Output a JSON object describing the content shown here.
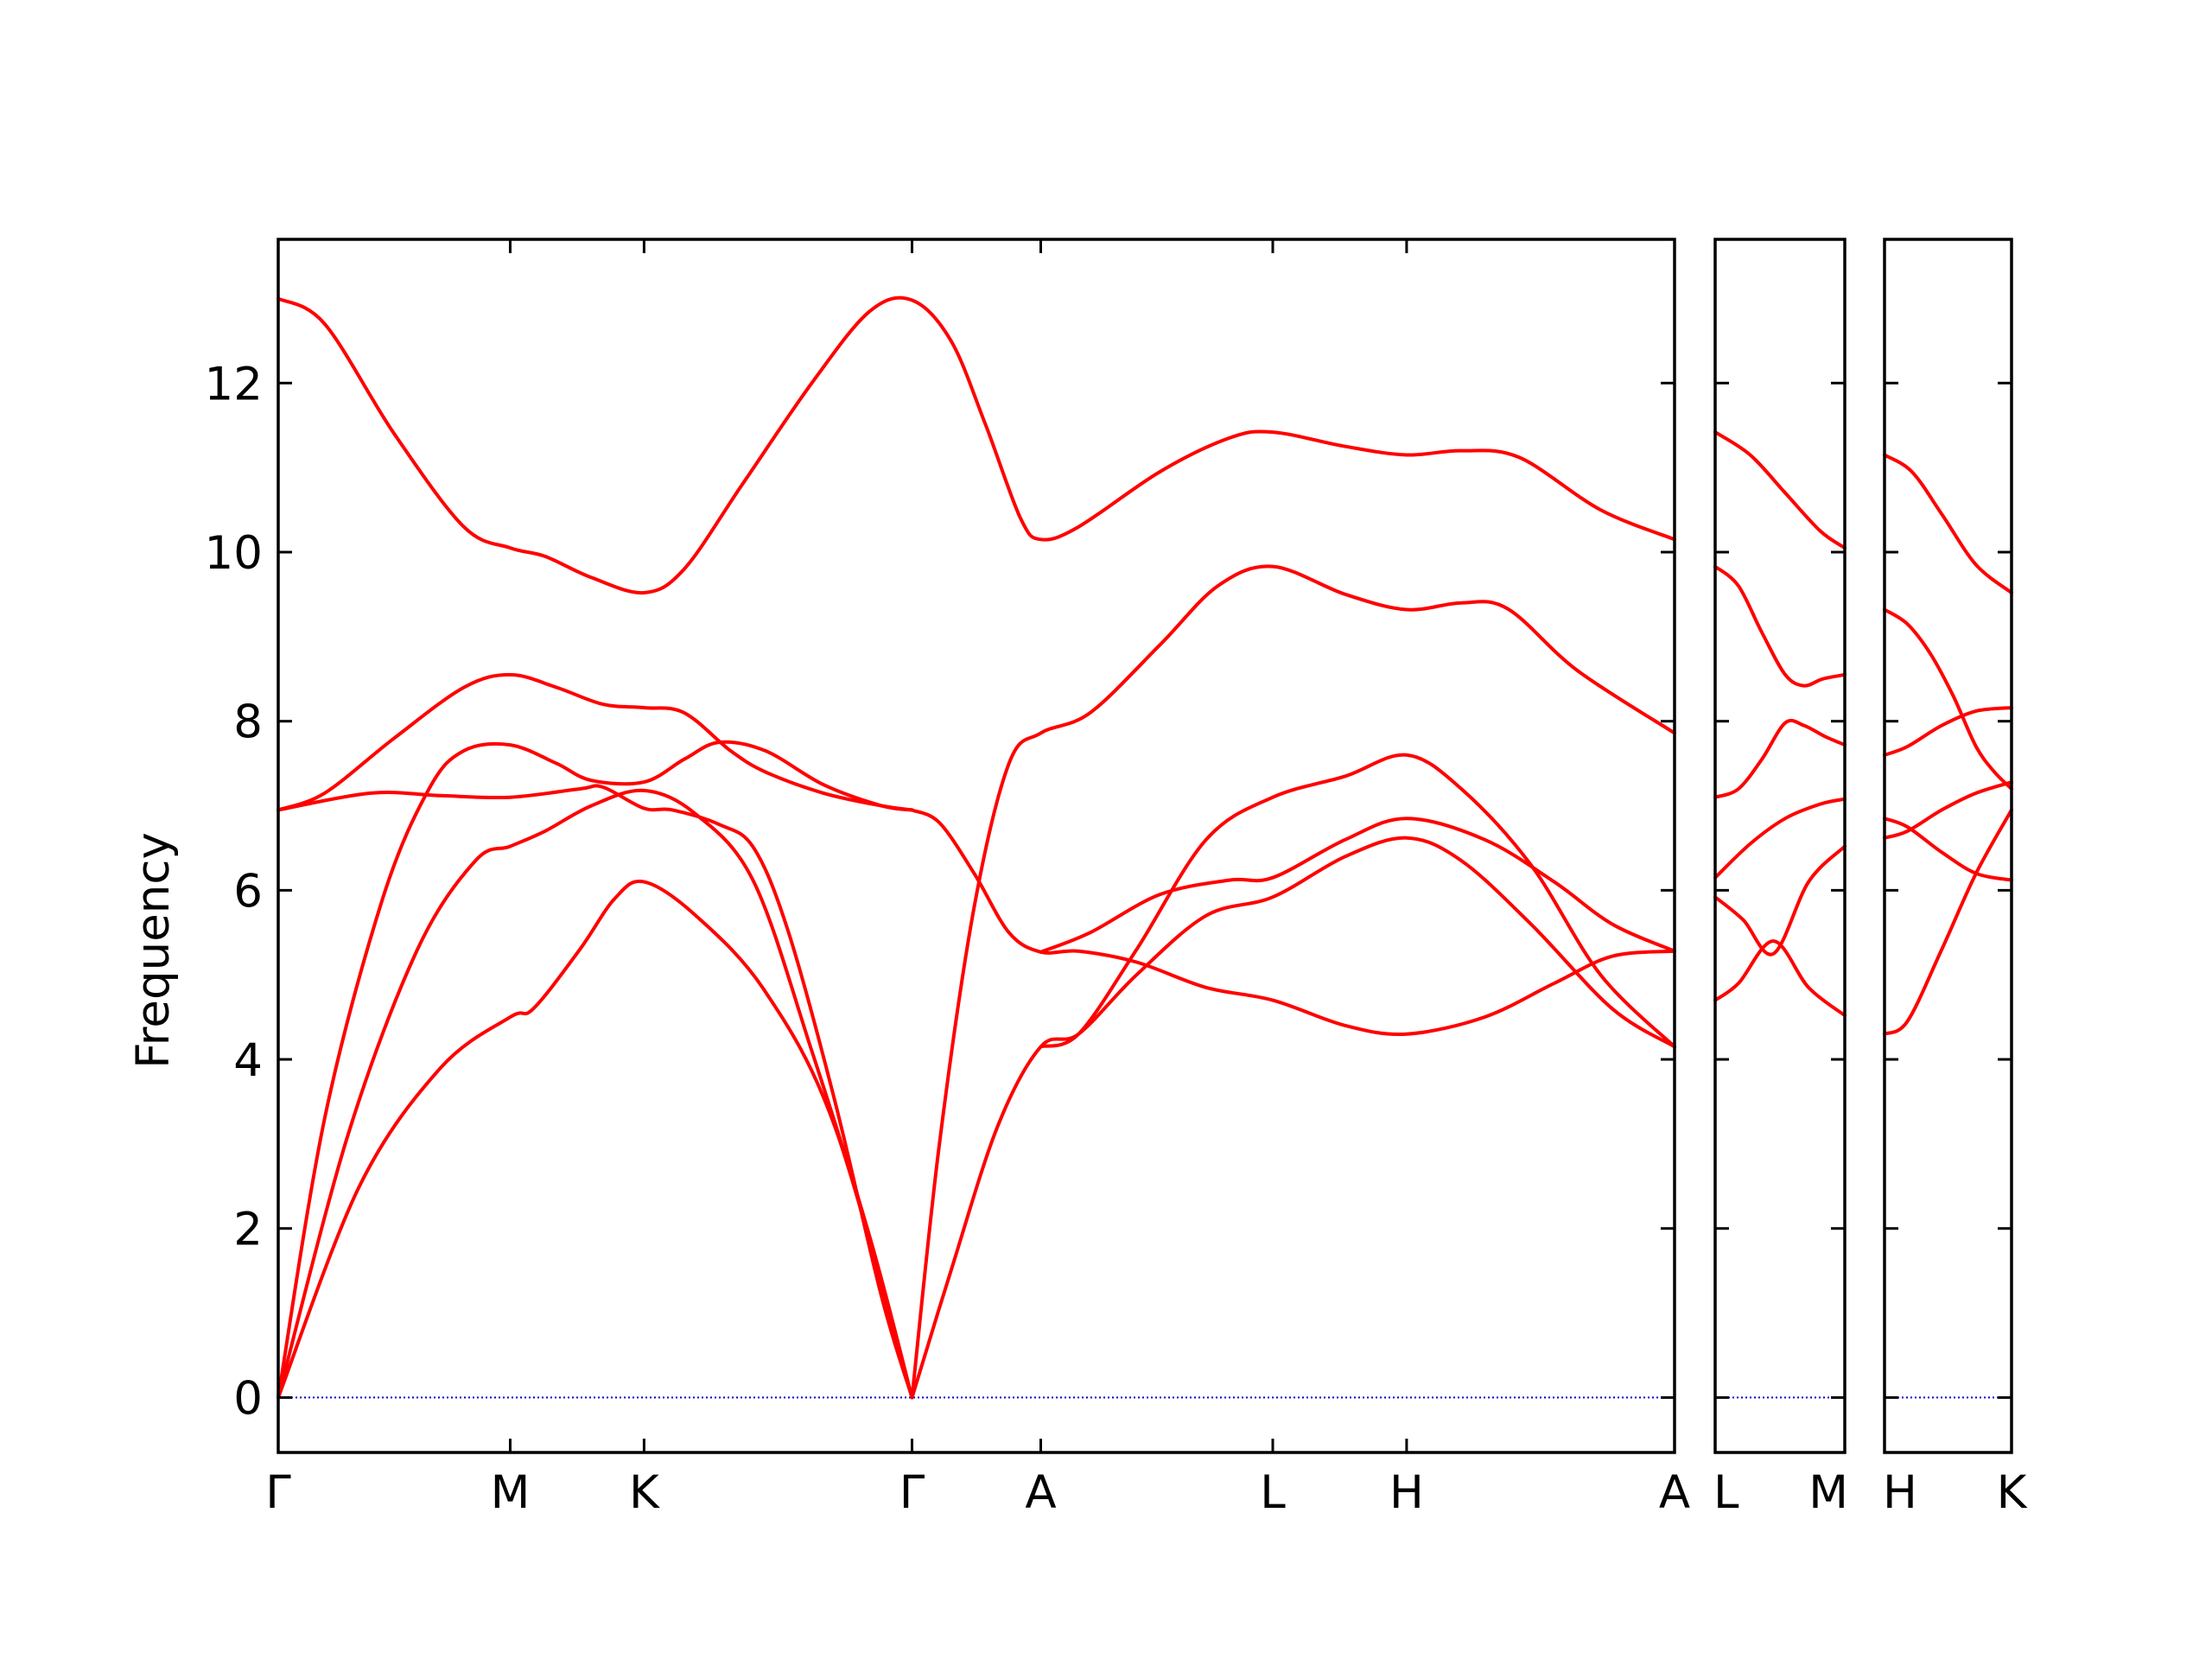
{
  "chart_data": {
    "type": "line",
    "title": "",
    "ylabel": "Frequency",
    "ylim": [
      -0.65,
      13.7
    ],
    "yticks": [
      0,
      2,
      4,
      6,
      8,
      10,
      12
    ],
    "grid": false,
    "legend": "none",
    "line_color": "#ff0000",
    "zero_line_color": "#0000cc",
    "panels": [
      {
        "kpoints": [
          {
            "label": "Γ",
            "x": 0
          },
          {
            "label": "M",
            "x": 1
          },
          {
            "label": "K",
            "x": 1.577
          },
          {
            "label": "Γ",
            "x": 2.732
          },
          {
            "label": "A",
            "x": 3.287
          },
          {
            "label": "L",
            "x": 4.287
          },
          {
            "label": "H",
            "x": 4.864
          },
          {
            "label": "A",
            "x": 6.019
          }
        ],
        "bands": [
          [
            [
              0,
              0
            ],
            [
              0.35,
              2.5
            ],
            [
              0.7,
              3.9
            ],
            [
              1,
              4.5
            ],
            [
              1.1,
              4.6
            ],
            [
              1.3,
              5.3
            ],
            [
              1.45,
              5.9
            ],
            [
              1.577,
              6.1
            ],
            [
              1.8,
              5.7
            ],
            [
              2.1,
              4.8
            ],
            [
              2.4,
              3.2
            ],
            [
              2.732,
              0
            ]
          ],
          [
            [
              0,
              0
            ],
            [
              0.3,
              3.1
            ],
            [
              0.6,
              5.3
            ],
            [
              0.85,
              6.35
            ],
            [
              1,
              6.52
            ],
            [
              1.15,
              6.7
            ],
            [
              1.35,
              7.0
            ],
            [
              1.577,
              7.18
            ],
            [
              1.8,
              6.9
            ],
            [
              2.05,
              6.1
            ],
            [
              2.3,
              4.1
            ],
            [
              2.55,
              1.9
            ],
            [
              2.732,
              0
            ]
          ],
          [
            [
              0,
              0
            ],
            [
              0.2,
              3.3
            ],
            [
              0.45,
              5.9
            ],
            [
              0.65,
              7.2
            ],
            [
              0.8,
              7.65
            ],
            [
              1,
              7.72
            ],
            [
              1.2,
              7.5
            ],
            [
              1.35,
              7.3
            ],
            [
              1.577,
              7.28
            ],
            [
              1.75,
              7.55
            ],
            [
              1.9,
              7.75
            ],
            [
              2.1,
              7.65
            ],
            [
              2.35,
              7.25
            ],
            [
              2.6,
              7.0
            ],
            [
              2.732,
              6.95
            ]
          ],
          [
            [
              0,
              6.95
            ],
            [
              0.4,
              7.15
            ],
            [
              0.7,
              7.12
            ],
            [
              1,
              7.1
            ],
            [
              1.3,
              7.2
            ],
            [
              1.4,
              7.22
            ],
            [
              1.577,
              6.97
            ],
            [
              1.7,
              6.95
            ],
            [
              1.9,
              6.78
            ],
            [
              2.05,
              6.5
            ],
            [
              2.2,
              5.5
            ],
            [
              2.4,
              3.5
            ],
            [
              2.6,
              1.2
            ],
            [
              2.732,
              0
            ]
          ],
          [
            [
              0,
              6.95
            ],
            [
              0.2,
              7.15
            ],
            [
              0.5,
              7.8
            ],
            [
              0.8,
              8.4
            ],
            [
              1,
              8.55
            ],
            [
              1.2,
              8.4
            ],
            [
              1.4,
              8.2
            ],
            [
              1.577,
              8.16
            ],
            [
              1.75,
              8.1
            ],
            [
              1.95,
              7.65
            ],
            [
              2.1,
              7.4
            ],
            [
              2.35,
              7.15
            ],
            [
              2.6,
              7.0
            ],
            [
              2.732,
              6.95
            ]
          ],
          [
            [
              0,
              13.0
            ],
            [
              0.2,
              12.7
            ],
            [
              0.5,
              11.4
            ],
            [
              0.8,
              10.3
            ],
            [
              1,
              10.05
            ],
            [
              1.15,
              9.95
            ],
            [
              1.35,
              9.7
            ],
            [
              1.577,
              9.52
            ],
            [
              1.75,
              9.8
            ],
            [
              2,
              10.8
            ],
            [
              2.3,
              12.0
            ],
            [
              2.55,
              12.85
            ],
            [
              2.732,
              12.98
            ],
            [
              2.9,
              12.5
            ],
            [
              3.05,
              11.5
            ],
            [
              3.2,
              10.4
            ],
            [
              3.287,
              10.15
            ],
            [
              3.45,
              10.3
            ],
            [
              3.8,
              10.95
            ],
            [
              4.1,
              11.35
            ],
            [
              4.287,
              11.42
            ],
            [
              4.6,
              11.25
            ],
            [
              4.864,
              11.15
            ],
            [
              5.1,
              11.2
            ],
            [
              5.35,
              11.12
            ],
            [
              5.7,
              10.5
            ],
            [
              6.019,
              10.15
            ]
          ],
          [
            [
              2.732,
              6.95
            ],
            [
              2.85,
              6.8
            ],
            [
              3.0,
              6.2
            ],
            [
              3.15,
              5.5
            ],
            [
              3.287,
              5.27
            ],
            [
              3.45,
              5.28
            ],
            [
              3.7,
              5.15
            ],
            [
              4,
              4.85
            ],
            [
              4.287,
              4.7
            ],
            [
              4.6,
              4.4
            ],
            [
              4.864,
              4.3
            ],
            [
              5.2,
              4.5
            ],
            [
              5.5,
              4.9
            ],
            [
              5.75,
              5.22
            ],
            [
              6.019,
              5.28
            ]
          ],
          [
            [
              2.732,
              0
            ],
            [
              2.9,
              1.5
            ],
            [
              3.1,
              3.2
            ],
            [
              3.287,
              4.15
            ],
            [
              3.45,
              4.3
            ],
            [
              3.7,
              5.0
            ],
            [
              4,
              5.7
            ],
            [
              4.287,
              5.92
            ],
            [
              4.6,
              6.4
            ],
            [
              4.864,
              6.62
            ],
            [
              5.1,
              6.35
            ],
            [
              5.4,
              5.6
            ],
            [
              5.75,
              4.6
            ],
            [
              6.019,
              4.15
            ]
          ],
          [
            [
              2.732,
              0
            ],
            [
              2.85,
              3.0
            ],
            [
              3.0,
              5.8
            ],
            [
              3.15,
              7.5
            ],
            [
              3.287,
              7.86
            ],
            [
              3.5,
              8.1
            ],
            [
              3.8,
              8.9
            ],
            [
              4.05,
              9.6
            ],
            [
              4.287,
              9.83
            ],
            [
              4.6,
              9.5
            ],
            [
              4.864,
              9.32
            ],
            [
              5.1,
              9.4
            ],
            [
              5.3,
              9.33
            ],
            [
              5.6,
              8.6
            ],
            [
              6.019,
              7.86
            ]
          ],
          [
            [
              3.287,
              4.15
            ],
            [
              3.45,
              4.3
            ],
            [
              3.7,
              5.3
            ],
            [
              4,
              6.6
            ],
            [
              4.287,
              7.1
            ],
            [
              4.6,
              7.35
            ],
            [
              4.864,
              7.6
            ],
            [
              5.1,
              7.2
            ],
            [
              5.4,
              6.3
            ],
            [
              5.7,
              5.0
            ],
            [
              6.019,
              4.15
            ]
          ],
          [
            [
              3.287,
              5.27
            ],
            [
              3.5,
              5.5
            ],
            [
              3.8,
              5.95
            ],
            [
              4.1,
              6.12
            ],
            [
              4.287,
              6.15
            ],
            [
              4.6,
              6.6
            ],
            [
              4.864,
              6.85
            ],
            [
              5.2,
              6.6
            ],
            [
              5.5,
              6.1
            ],
            [
              5.75,
              5.6
            ],
            [
              6.019,
              5.28
            ]
          ]
        ]
      },
      {
        "kpoints": [
          {
            "label": "L",
            "x": 0
          },
          {
            "label": "M",
            "x": 0.555
          }
        ],
        "bands": [
          [
            [
              0,
              4.7
            ],
            [
              0.1,
              4.9
            ],
            [
              0.25,
              5.4
            ],
            [
              0.4,
              4.85
            ],
            [
              0.555,
              4.52
            ]
          ],
          [
            [
              0,
              5.92
            ],
            [
              0.12,
              5.65
            ],
            [
              0.25,
              5.25
            ],
            [
              0.4,
              6.1
            ],
            [
              0.555,
              6.52
            ]
          ],
          [
            [
              0,
              6.15
            ],
            [
              0.15,
              6.55
            ],
            [
              0.3,
              6.85
            ],
            [
              0.45,
              7.02
            ],
            [
              0.555,
              7.08
            ]
          ],
          [
            [
              0,
              7.1
            ],
            [
              0.1,
              7.2
            ],
            [
              0.2,
              7.55
            ],
            [
              0.3,
              7.98
            ],
            [
              0.38,
              7.95
            ],
            [
              0.47,
              7.82
            ],
            [
              0.555,
              7.72
            ]
          ],
          [
            [
              0,
              9.83
            ],
            [
              0.1,
              9.6
            ],
            [
              0.2,
              9.05
            ],
            [
              0.3,
              8.55
            ],
            [
              0.38,
              8.42
            ],
            [
              0.46,
              8.5
            ],
            [
              0.555,
              8.55
            ]
          ],
          [
            [
              0,
              11.42
            ],
            [
              0.15,
              11.15
            ],
            [
              0.3,
              10.7
            ],
            [
              0.45,
              10.25
            ],
            [
              0.555,
              10.05
            ]
          ]
        ]
      },
      {
        "kpoints": [
          {
            "label": "H",
            "x": 0
          },
          {
            "label": "K",
            "x": 0.555
          }
        ],
        "bands": [
          [
            [
              0,
              4.3
            ],
            [
              0.1,
              4.45
            ],
            [
              0.25,
              5.3
            ],
            [
              0.4,
              6.2
            ],
            [
              0.555,
              6.95
            ]
          ],
          [
            [
              0,
              6.62
            ],
            [
              0.1,
              6.7
            ],
            [
              0.25,
              6.95
            ],
            [
              0.4,
              7.15
            ],
            [
              0.555,
              7.28
            ]
          ],
          [
            [
              0,
              6.85
            ],
            [
              0.1,
              6.75
            ],
            [
              0.25,
              6.45
            ],
            [
              0.4,
              6.2
            ],
            [
              0.555,
              6.12
            ]
          ],
          [
            [
              0,
              7.6
            ],
            [
              0.1,
              7.7
            ],
            [
              0.25,
              7.95
            ],
            [
              0.4,
              8.12
            ],
            [
              0.555,
              8.16
            ]
          ],
          [
            [
              0,
              9.32
            ],
            [
              0.1,
              9.15
            ],
            [
              0.2,
              8.8
            ],
            [
              0.3,
              8.3
            ],
            [
              0.4,
              7.7
            ],
            [
              0.48,
              7.4
            ],
            [
              0.555,
              7.2
            ]
          ],
          [
            [
              0,
              11.15
            ],
            [
              0.12,
              10.95
            ],
            [
              0.25,
              10.45
            ],
            [
              0.4,
              9.85
            ],
            [
              0.555,
              9.52
            ]
          ]
        ]
      }
    ]
  }
}
